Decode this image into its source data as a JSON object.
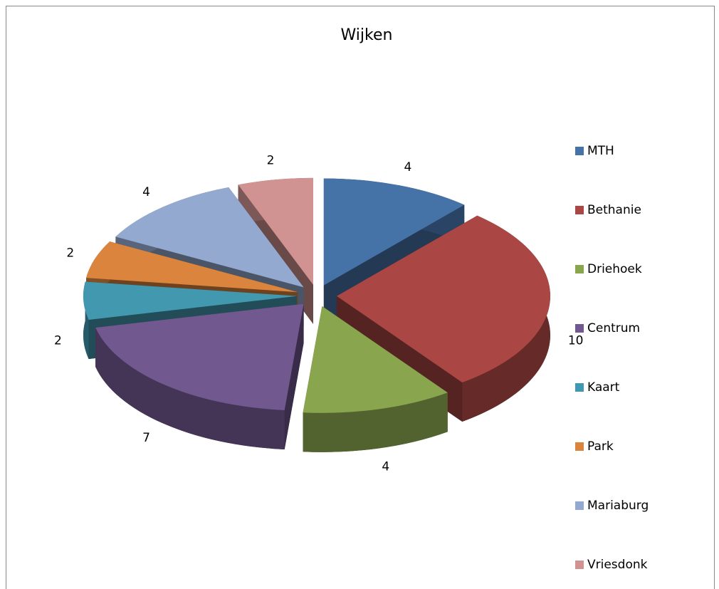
{
  "chart_data": {
    "type": "pie3d",
    "title": "Wijken",
    "categories": [
      "MTH",
      "Bethanie",
      "Driehoek",
      "Centrum",
      "Kaart",
      "Park",
      "Mariaburg",
      "Vriesdonk"
    ],
    "values": [
      4,
      10,
      4,
      7,
      2,
      2,
      4,
      2
    ],
    "colors": [
      "#4572a7",
      "#aa4643",
      "#89a54e",
      "#71588f",
      "#4198af",
      "#db843d",
      "#93a9cf",
      "#d19392"
    ],
    "legend": "right"
  }
}
